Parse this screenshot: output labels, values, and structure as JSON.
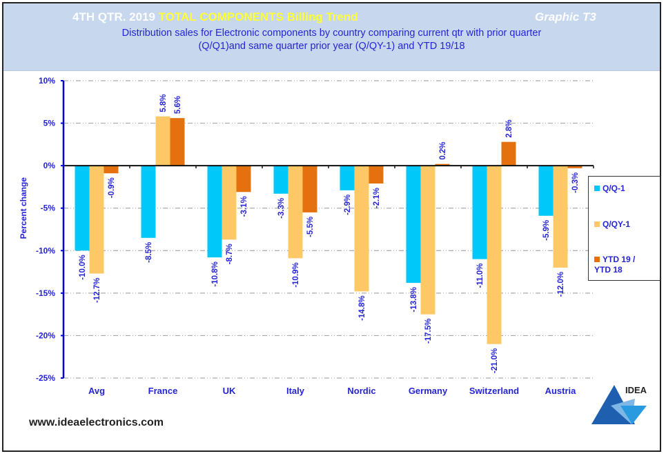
{
  "header": {
    "title_part1": "4TH QTR. 2019 ",
    "title_part2": "TOTAL COMPONENTS Billing Trend",
    "graphic_label": "Graphic T3",
    "subtitle_line1": "Distribution  sales for Electronic components by country comparing  current qtr with prior quarter",
    "subtitle_line2": "(Q/Q1)and  same quarter prior year (Q/QY-1)  and YTD  19/18"
  },
  "footer": {
    "url": "www.ideaelectronics.com",
    "logo_text": "IDEA"
  },
  "chart_data": {
    "type": "bar",
    "title": "4TH QTR. 2019 TOTAL COMPONENTS Billing Trend",
    "xlabel": "",
    "ylabel": "Percent change",
    "ylim": [
      -25,
      10
    ],
    "yticks": [
      10,
      5,
      0,
      -5,
      -10,
      -15,
      -20,
      -25
    ],
    "ytick_labels": [
      "10%",
      "5%",
      "0%",
      "-5%",
      "-10%",
      "-15%",
      "-20%",
      "-25%"
    ],
    "grid": true,
    "legend_position": "right",
    "categories": [
      "Avg",
      "France",
      "UK",
      "Italy",
      "Nordic",
      "Germany",
      "Switzerland",
      "Austria"
    ],
    "series": [
      {
        "name": "Q/Q-1",
        "color": "#00c8f8",
        "values": [
          -10.0,
          -8.5,
          -10.8,
          -3.3,
          -2.9,
          -13.8,
          -11.0,
          -5.9
        ],
        "labels": [
          "-10.0%",
          "-8.5%",
          "-10.8%",
          "-3.3%",
          "-2.9%",
          "-13.8%",
          "-11.0%",
          "-5.9%"
        ]
      },
      {
        "name": "Q/QY-1",
        "color": "#fdc865",
        "values": [
          -12.7,
          5.8,
          -8.7,
          -10.9,
          -14.8,
          -17.5,
          -21.0,
          -12.0
        ],
        "labels": [
          "-12.7%",
          "5.8%",
          "-8.7%",
          "-10.9%",
          "-14.8%",
          "-17.5%",
          "-21.0%",
          "-12.0%"
        ]
      },
      {
        "name": "YTD 19 / YTD 18",
        "color": "#e4700e",
        "values": [
          -0.9,
          5.6,
          -3.1,
          -5.5,
          -2.1,
          0.2,
          2.8,
          -0.3
        ],
        "labels": [
          "-0.9%",
          "5.6%",
          "-3.1%",
          "-5.5%",
          "-2.1%",
          "0.2%",
          "2.8%",
          "-0.3%"
        ]
      }
    ]
  },
  "legend": {
    "items": [
      {
        "label": "Q/Q-1",
        "color": "#00c8f8"
      },
      {
        "label": "Q/QY-1",
        "color": "#fdc865"
      },
      {
        "label_line1": "YTD 19 /",
        "label_line2": "YTD 18",
        "color": "#e4700e"
      }
    ]
  }
}
